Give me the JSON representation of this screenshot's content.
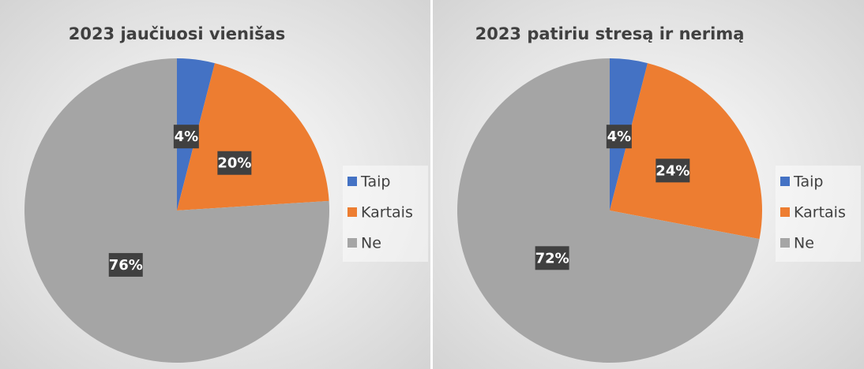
{
  "chart_data": [
    {
      "type": "pie",
      "title": "2023 jaučiuosi vienišas",
      "categories": [
        "Taip",
        "Kartais",
        "Ne"
      ],
      "values": [
        4,
        20,
        76
      ],
      "value_labels": [
        "4%",
        "20%",
        "76%"
      ],
      "colors": [
        "#4472c4",
        "#ed7d31",
        "#a5a5a5"
      ],
      "legend": "right"
    },
    {
      "type": "pie",
      "title": "2023 patiriu stresą ir nerimą",
      "categories": [
        "Taip",
        "Kartais",
        "Ne"
      ],
      "values": [
        4,
        24,
        72
      ],
      "value_labels": [
        "4%",
        "24%",
        "72%"
      ],
      "colors": [
        "#4472c4",
        "#ed7d31",
        "#a5a5a5"
      ],
      "legend": "right"
    }
  ]
}
